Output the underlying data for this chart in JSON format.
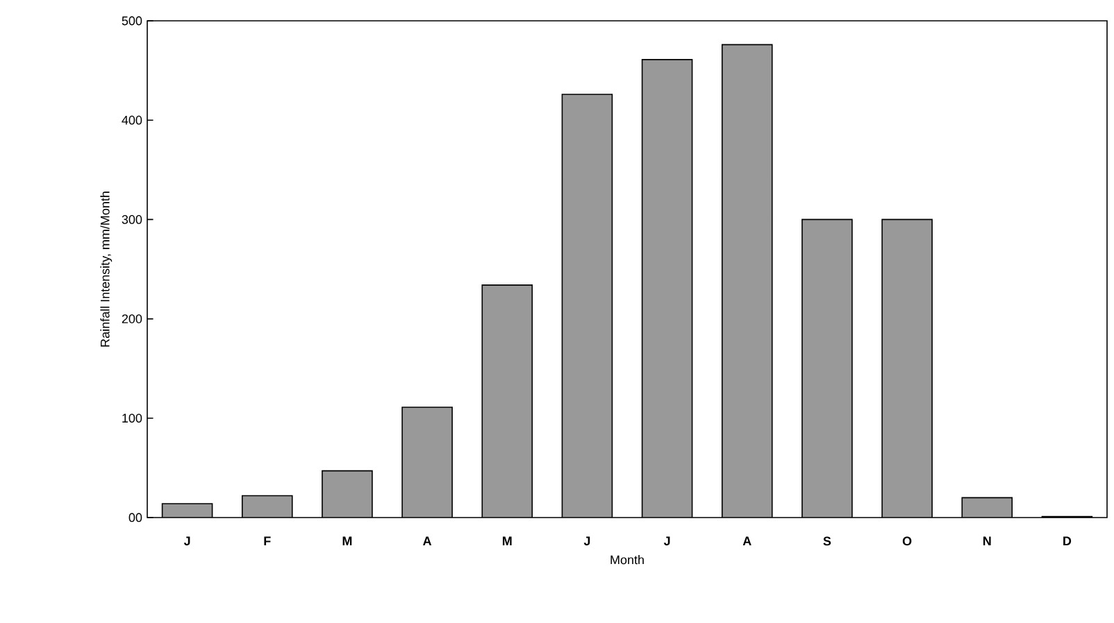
{
  "chart_data": {
    "type": "bar",
    "xlabel": "Month",
    "ylabel": "Rainfall Intensity, mm/Month",
    "categories": [
      "J",
      "F",
      "M",
      "A",
      "M",
      "J",
      "J",
      "A",
      "S",
      "O",
      "N",
      "D"
    ],
    "values": [
      14,
      22,
      47,
      111,
      234,
      426,
      461,
      476,
      300,
      300,
      20,
      1
    ],
    "color": "#999999",
    "ylim": [
      0,
      500
    ],
    "yticks": [
      {
        "value": 0,
        "label": "00"
      },
      100,
      200,
      300,
      400,
      500
    ],
    "grid": false
  }
}
